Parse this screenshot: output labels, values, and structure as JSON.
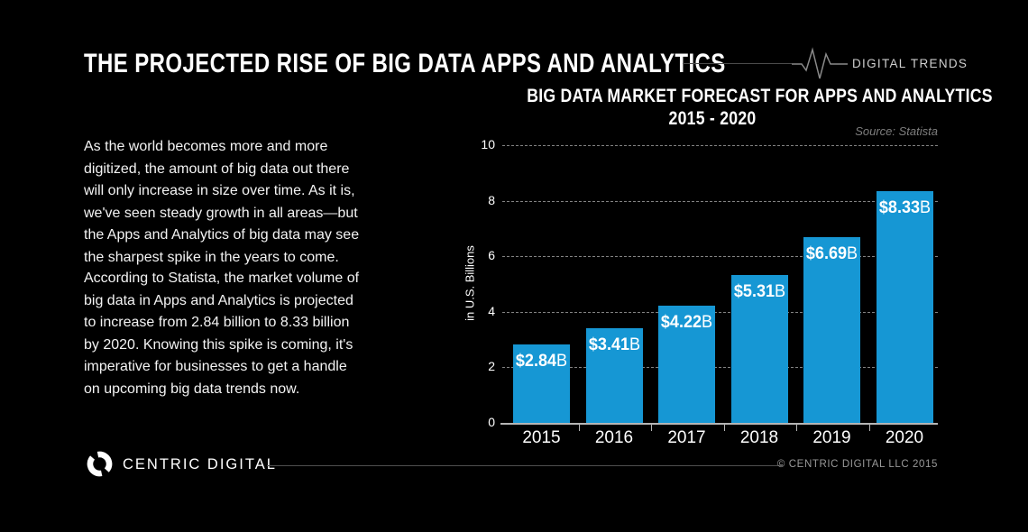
{
  "page": {
    "title": "THE PROJECTED RISE OF BIG DATA APPS AND ANALYTICS",
    "brand_tag": "DIGITAL TRENDS",
    "paragraph1": "As the world becomes more and more digitized, the amount of big data out there will only increase in size over time. As it is, we've seen steady growth in all areas—but the Apps and Analytics of big data may see the sharpest spike in the years to come.",
    "paragraph2": "According to Statista, the market volume of big data in Apps and Analytics is projected to increase from 2.84 billion to 8.33 billion by 2020. Knowing this spike is coming, it's imperative for businesses to get a handle on upcoming big data trends now.",
    "footer": {
      "logo_icon": "centric-digital-ring-logo",
      "logo_text": "CENTRIC DIGITAL",
      "copyright": "© CENTRIC DIGITAL LLC 2015"
    },
    "icons": {
      "pulse": "heartbeat-pulse-line-icon"
    },
    "colors": {
      "background": "#000000",
      "bar_blue": "#1697d4",
      "text_white": "#ffffff",
      "grid_gray": "#828282",
      "axis_gray": "#b5b5b5",
      "muted_gray": "#7e7e7e"
    }
  },
  "chart_data": {
    "type": "bar",
    "title": "BIG DATA MARKET FORECAST FOR APPS AND ANALYTICS",
    "subtitle": "2015 - 2020",
    "source": "Source: Statista",
    "categories": [
      "2015",
      "2016",
      "2017",
      "2018",
      "2019",
      "2020"
    ],
    "values": [
      2.84,
      3.41,
      4.22,
      5.31,
      6.69,
      8.33
    ],
    "labels": [
      "$2.84B",
      "$3.41B",
      "$4.22B",
      "$5.31B",
      "$6.69B",
      "$8.33B"
    ],
    "xlabel": "",
    "ylabel": "in U.S. Billions",
    "yticks": [
      0,
      2,
      4,
      6,
      8,
      10
    ],
    "ylim": [
      0,
      10
    ],
    "bar_color": "#1697d4",
    "grid": "dashed-horizontal",
    "legend": false
  }
}
